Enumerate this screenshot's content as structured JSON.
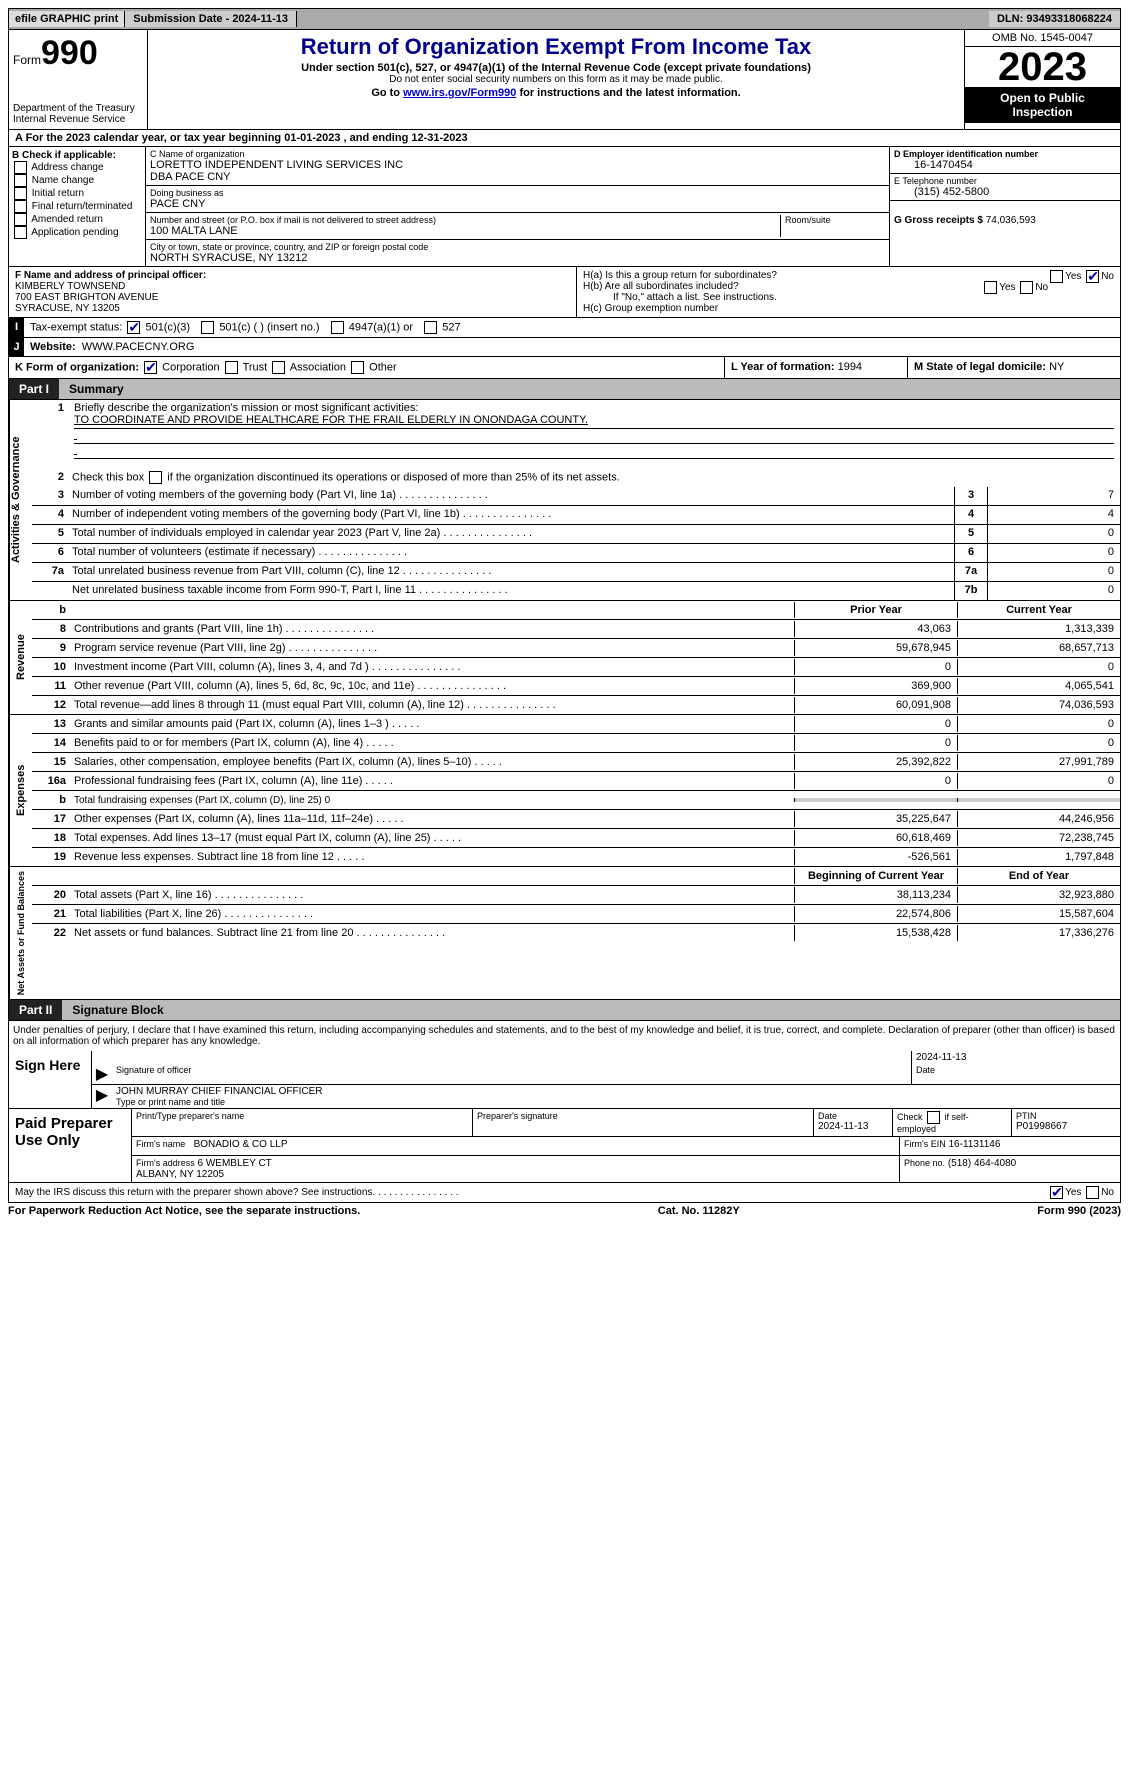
{
  "colors": {
    "accent": "#00008b",
    "link": "#0000cc",
    "check": "#0000aa",
    "shade": "#cccccc"
  },
  "topbar": {
    "efile": "efile GRAPHIC print",
    "submission": "Submission Date - 2024-11-13",
    "dln": "DLN: 93493318068224"
  },
  "header": {
    "form_prefix": "Form",
    "form_no": "990",
    "dept": "Department of the Treasury\nInternal Revenue Service",
    "title": "Return of Organization Exempt From Income Tax",
    "sub": "Under section 501(c), 527, or 4947(a)(1) of the Internal Revenue Code (except private foundations)",
    "small": "Do not enter social security numbers on this form as it may be made public.",
    "go_pre": "Go to ",
    "go_link": "www.irs.gov/Form990",
    "go_post": " for instructions and the latest information.",
    "omb": "OMB No. 1545-0047",
    "year": "2023",
    "open": "Open to Public Inspection"
  },
  "row_a": "A For the 2023 calendar year, or tax year beginning 01-01-2023   , and ending 12-31-2023",
  "section_b": {
    "label": "B Check if applicable:",
    "opts": [
      "Address change",
      "Name change",
      "Initial return",
      "Final return/terminated",
      "Amended return",
      "Application pending"
    ]
  },
  "section_c": {
    "name_lbl": "C Name of organization",
    "name": "LORETTO INDEPENDENT LIVING SERVICES INC\nDBA PACE CNY",
    "dba_lbl": "Doing business as",
    "dba": "PACE CNY",
    "street_lbl": "Number and street (or P.O. box if mail is not delivered to street address)",
    "street": "100 MALTA LANE",
    "room_lbl": "Room/suite",
    "room": "",
    "city_lbl": "City or town, state or province, country, and ZIP or foreign postal code",
    "city": "NORTH SYRACUSE, NY  13212"
  },
  "section_d": {
    "lbl": "D Employer identification number",
    "val": "16-1470454"
  },
  "section_e": {
    "lbl": "E Telephone number",
    "val": "(315) 452-5800"
  },
  "section_g": {
    "lbl": "G Gross receipts $",
    "val": "74,036,593"
  },
  "section_f": {
    "lbl": "F  Name and address of principal officer:",
    "val": "KIMBERLY TOWNSEND\n700 EAST BRIGHTON AVENUE\nSYRACUSE, NY  13205"
  },
  "section_h": {
    "a": "H(a)  Is this a group return for subordinates?",
    "a_yes": false,
    "a_no": true,
    "b": "H(b)  Are all subordinates included?",
    "b_note": "If \"No,\" attach a list. See instructions.",
    "c": "H(c)  Group exemption number"
  },
  "section_i": {
    "lbl": "Tax-exempt status:",
    "c3": true,
    "c3_lbl": "501(c)(3)",
    "c": "501(c) (  ) (insert no.)",
    "a1": "4947(a)(1) or",
    "s527": "527"
  },
  "section_j": {
    "lbl": "Website:",
    "val": "WWW.PACECNY.ORG"
  },
  "section_k": {
    "lbl": "K Form of organization:",
    "corp": true,
    "corp_lbl": "Corporation",
    "trust_lbl": "Trust",
    "assoc_lbl": "Association",
    "other_lbl": "Other"
  },
  "section_l": {
    "lbl": "L Year of formation:",
    "val": "1994"
  },
  "section_m": {
    "lbl": "M State of legal domicile:",
    "val": "NY"
  },
  "part1": {
    "num": "Part I",
    "title": "Summary"
  },
  "gov": {
    "tab": "Activities & Governance",
    "l1": "Briefly describe the organization's mission or most significant activities:",
    "mission": "TO COORDINATE AND PROVIDE HEALTHCARE FOR THE FRAIL ELDERLY IN ONONDAGA COUNTY.",
    "l2": "Check this box       if the organization discontinued its operations or disposed of more than 25% of its net assets.",
    "l3": "Number of voting members of the governing body (Part VI, line 1a)",
    "l4": "Number of independent voting members of the governing body (Part VI, line 1b)",
    "l5": "Total number of individuals employed in calendar year 2023 (Part V, line 2a)",
    "l6": "Total number of volunteers (estimate if necessary)",
    "l7a": "Total unrelated business revenue from Part VIII, column (C), line 12",
    "l7b": "Net unrelated business taxable income from Form 990-T, Part I, line 11",
    "v3": "7",
    "v4": "4",
    "v5": "0",
    "v6": "0",
    "v7a": "0",
    "v7b": "0"
  },
  "rev": {
    "tab": "Revenue",
    "hdr_prior": "Prior Year",
    "hdr_curr": "Current Year",
    "rows": [
      {
        "n": "8",
        "d": "Contributions and grants (Part VIII, line 1h)",
        "py": "43,063",
        "cy": "1,313,339"
      },
      {
        "n": "9",
        "d": "Program service revenue (Part VIII, line 2g)",
        "py": "59,678,945",
        "cy": "68,657,713"
      },
      {
        "n": "10",
        "d": "Investment income (Part VIII, column (A), lines 3, 4, and 7d )",
        "py": "0",
        "cy": "0"
      },
      {
        "n": "11",
        "d": "Other revenue (Part VIII, column (A), lines 5, 6d, 8c, 9c, 10c, and 11e)",
        "py": "369,900",
        "cy": "4,065,541"
      },
      {
        "n": "12",
        "d": "Total revenue—add lines 8 through 11 (must equal Part VIII, column (A), line 12)",
        "py": "60,091,908",
        "cy": "74,036,593"
      }
    ]
  },
  "exp": {
    "tab": "Expenses",
    "rows": [
      {
        "n": "13",
        "d": "Grants and similar amounts paid (Part IX, column (A), lines 1–3 )",
        "py": "0",
        "cy": "0"
      },
      {
        "n": "14",
        "d": "Benefits paid to or for members (Part IX, column (A), line 4)",
        "py": "0",
        "cy": "0"
      },
      {
        "n": "15",
        "d": "Salaries, other compensation, employee benefits (Part IX, column (A), lines 5–10)",
        "py": "25,392,822",
        "cy": "27,991,789"
      },
      {
        "n": "16a",
        "d": "Professional fundraising fees (Part IX, column (A), line 11e)",
        "py": "0",
        "cy": "0"
      },
      {
        "n": "b",
        "d": "Total fundraising expenses (Part IX, column (D), line 25) 0",
        "py": "",
        "cy": "",
        "shade": true,
        "small": true
      },
      {
        "n": "17",
        "d": "Other expenses (Part IX, column (A), lines 11a–11d, 11f–24e)",
        "py": "35,225,647",
        "cy": "44,246,956"
      },
      {
        "n": "18",
        "d": "Total expenses. Add lines 13–17 (must equal Part IX, column (A), line 25)",
        "py": "60,618,469",
        "cy": "72,238,745"
      },
      {
        "n": "19",
        "d": "Revenue less expenses. Subtract line 18 from line 12",
        "py": "-526,561",
        "cy": "1,797,848"
      }
    ]
  },
  "net": {
    "tab": "Net Assets or Fund Balances",
    "hdr_beg": "Beginning of Current Year",
    "hdr_end": "End of Year",
    "rows": [
      {
        "n": "20",
        "d": "Total assets (Part X, line 16)",
        "py": "38,113,234",
        "cy": "32,923,880"
      },
      {
        "n": "21",
        "d": "Total liabilities (Part X, line 26)",
        "py": "22,574,806",
        "cy": "15,587,604"
      },
      {
        "n": "22",
        "d": "Net assets or fund balances. Subtract line 21 from line 20",
        "py": "15,538,428",
        "cy": "17,336,276"
      }
    ]
  },
  "part2": {
    "num": "Part II",
    "title": "Signature Block"
  },
  "penalties": "Under penalties of perjury, I declare that I have examined this return, including accompanying schedules and statements, and to the best of my knowledge and belief, it is true, correct, and complete. Declaration of preparer (other than officer) is based on all information of which preparer has any knowledge.",
  "sign": {
    "lbl": "Sign Here",
    "sig_lbl": "Signature of officer",
    "date_lbl": "Date",
    "date": "2024-11-13",
    "officer": "JOHN MURRAY CHIEF FINANCIAL OFFICER",
    "type_lbl": "Type or print name and title"
  },
  "prep": {
    "lbl": "Paid Preparer Use Only",
    "name_lbl": "Print/Type preparer's name",
    "name": "",
    "sig_lbl": "Preparer's signature",
    "date_lbl": "Date",
    "date": "2024-11-13",
    "self_lbl": "Check        if self-employed",
    "ptin_lbl": "PTIN",
    "ptin": "P01998667",
    "firm_lbl": "Firm's name",
    "firm": "BONADIO & CO LLP",
    "ein_lbl": "Firm's EIN",
    "ein": "16-1131146",
    "addr_lbl": "Firm's address",
    "addr": "6 WEMBLEY CT\nALBANY, NY  12205",
    "phone_lbl": "Phone no.",
    "phone": "(518) 464-4080"
  },
  "discuss": {
    "q": "May the IRS discuss this return with the preparer shown above? See instructions.",
    "yes": true
  },
  "bottom": {
    "l": "For Paperwork Reduction Act Notice, see the separate instructions.",
    "c": "Cat. No. 11282Y",
    "r": "Form 990 (2023)"
  }
}
